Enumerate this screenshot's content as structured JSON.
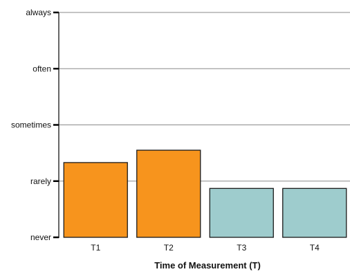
{
  "chart_data": {
    "type": "bar",
    "title": "",
    "xlabel": "Time of Measurement (T)",
    "ylabel": "",
    "categories": [
      "T1",
      "T2",
      "T3",
      "T4"
    ],
    "values": [
      1.33,
      1.55,
      0.87,
      0.87
    ],
    "bar_colors": [
      "#f7941d",
      "#f7941d",
      "#9ecccd",
      "#9ecccd"
    ],
    "y_ticks": [
      {
        "value": 0,
        "label": "never"
      },
      {
        "value": 1,
        "label": "rarely"
      },
      {
        "value": 2,
        "label": "sometimes"
      },
      {
        "value": 3,
        "label": "often"
      },
      {
        "value": 4,
        "label": "always"
      }
    ],
    "ylim": [
      0,
      4
    ],
    "grid": true,
    "legend": "none"
  }
}
